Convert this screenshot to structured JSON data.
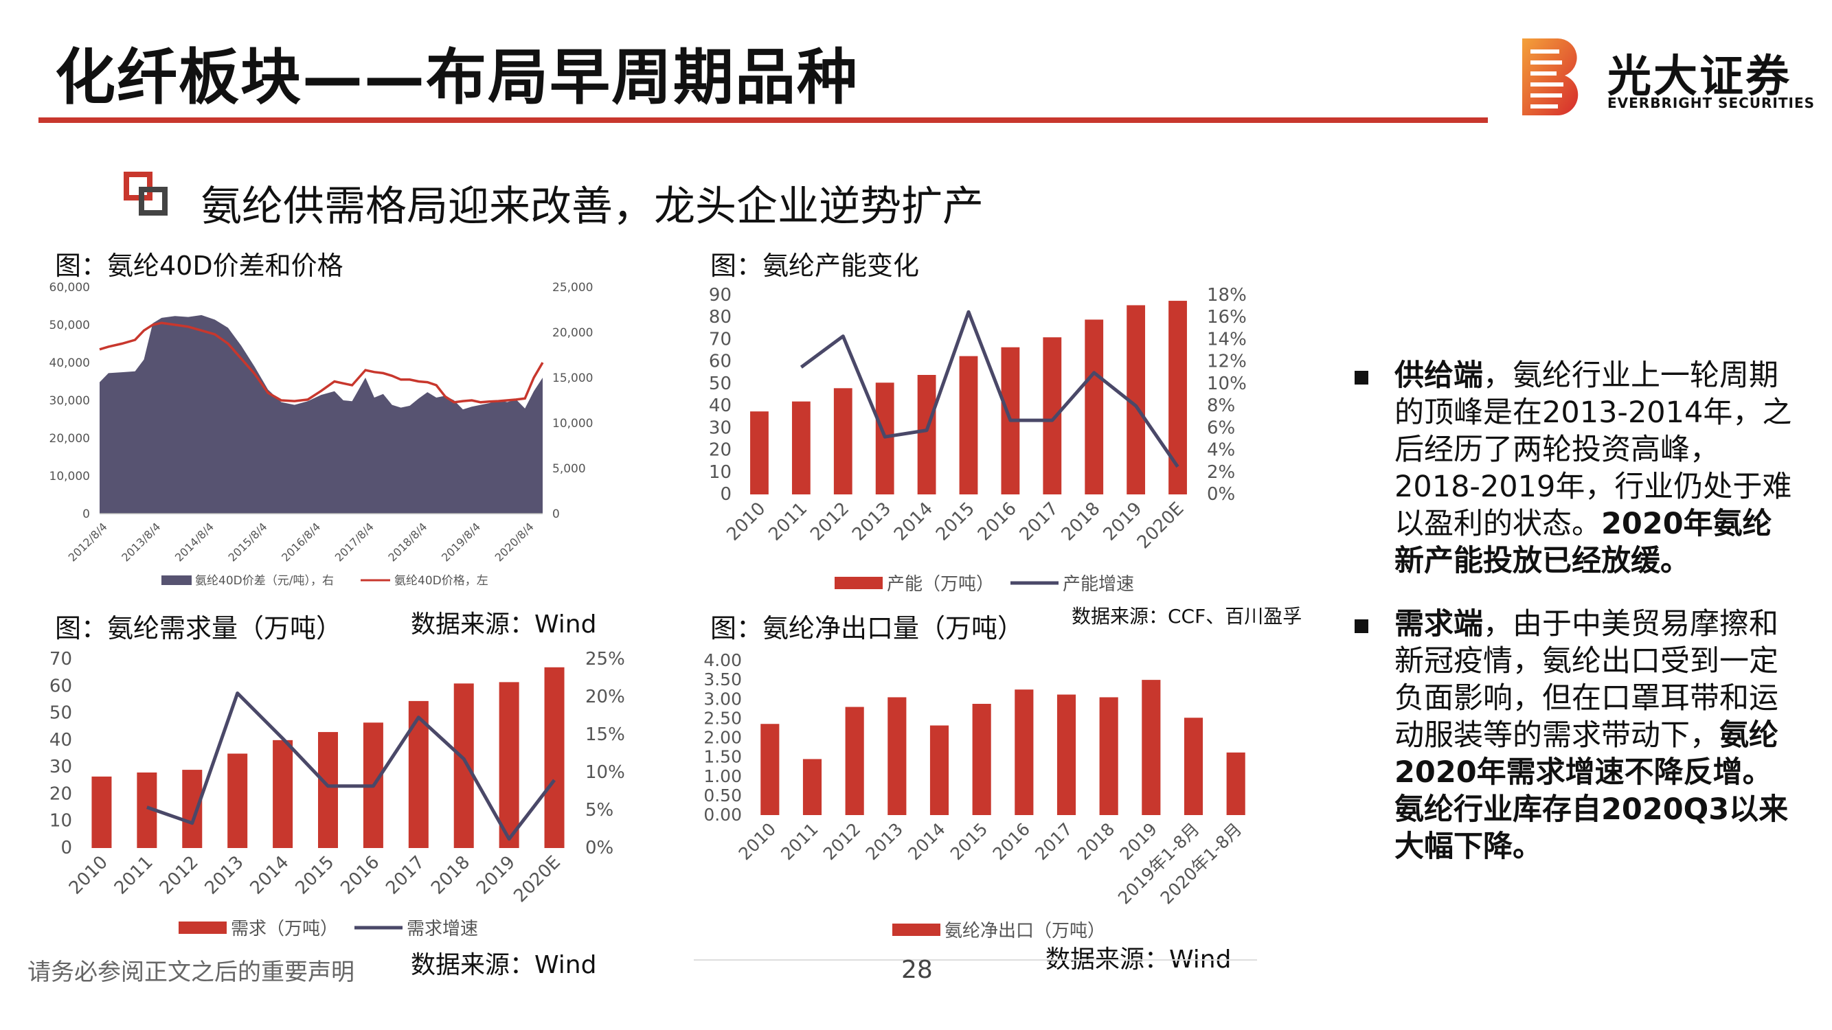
{
  "header": {
    "title": "化纤板块——布局早周期品种",
    "logo_cn": "光大证券",
    "logo_en": "EVERBRIGHT SECURITIES"
  },
  "subtitle": "氨纶供需格局迎来改善，龙头企业逆势扩产",
  "charts": {
    "price": {
      "caption": "图：氨纶40D价差和价格",
      "source": "数据来源：Wind"
    },
    "capacity": {
      "caption": "图：氨纶产能变化",
      "source": "数据来源：CCF、百川盈孚"
    },
    "demand": {
      "caption": "图：氨纶需求量（万吨）",
      "source": "数据来源：Wind"
    },
    "export": {
      "caption": "图：氨纶净出口量（万吨）",
      "source": "数据来源：Wind"
    }
  },
  "chart_data": [
    {
      "id": "price",
      "type": "area",
      "x_ticks": [
        "2012/8/4",
        "2013/8/4",
        "2014/8/4",
        "2015/8/4",
        "2016/8/4",
        "2017/8/4",
        "2018/8/4",
        "2019/8/4",
        "2020/8/4"
      ],
      "y_left_ticks": [
        "0",
        "10,000",
        "20,000",
        "30,000",
        "40,000",
        "50,000",
        "60,000"
      ],
      "y_right_ticks": [
        "0",
        "5,000",
        "10,000",
        "15,000",
        "20,000",
        "25,000"
      ],
      "ylim_left": [
        0,
        60000
      ],
      "ylim_right": [
        0,
        25000
      ],
      "series": [
        {
          "name": "氨纶40D价差（元/吨），右",
          "kind": "area",
          "axis": "right",
          "color": "#575371",
          "x": [
            0,
            0.02,
            0.05,
            0.08,
            0.1,
            0.12,
            0.14,
            0.17,
            0.2,
            0.23,
            0.26,
            0.29,
            0.32,
            0.35,
            0.38,
            0.41,
            0.44,
            0.47,
            0.5,
            0.53,
            0.55,
            0.57,
            0.6,
            0.62,
            0.64,
            0.66,
            0.68,
            0.7,
            0.72,
            0.74,
            0.76,
            0.78,
            0.8,
            0.82,
            0.84,
            0.86,
            0.88,
            0.9,
            0.92,
            0.94,
            0.96,
            0.98,
            1.0
          ],
          "values": [
            14500,
            15500,
            15600,
            15700,
            17000,
            21000,
            21600,
            21800,
            21700,
            21900,
            21400,
            20500,
            18500,
            16200,
            13700,
            12300,
            12000,
            12400,
            13100,
            13500,
            12500,
            12400,
            15000,
            12800,
            13200,
            12000,
            11700,
            11900,
            12700,
            13400,
            12800,
            13000,
            12500,
            11500,
            11800,
            12000,
            12200,
            12500,
            12300,
            12600,
            11600,
            13500,
            15000
          ]
        },
        {
          "name": "氨纶40D价格，左",
          "kind": "line",
          "axis": "left",
          "color": "#c8372d",
          "x": [
            0,
            0.02,
            0.05,
            0.08,
            0.1,
            0.12,
            0.14,
            0.17,
            0.2,
            0.23,
            0.26,
            0.29,
            0.32,
            0.35,
            0.38,
            0.41,
            0.44,
            0.47,
            0.5,
            0.53,
            0.55,
            0.57,
            0.6,
            0.62,
            0.64,
            0.66,
            0.68,
            0.7,
            0.72,
            0.74,
            0.76,
            0.78,
            0.8,
            0.82,
            0.84,
            0.86,
            0.88,
            0.9,
            0.92,
            0.94,
            0.96,
            0.98,
            1.0
          ],
          "values": [
            43500,
            44200,
            45000,
            46000,
            48500,
            50000,
            50500,
            50000,
            49500,
            48500,
            47500,
            45000,
            41000,
            37000,
            32000,
            30000,
            29800,
            30200,
            32500,
            35000,
            34500,
            34000,
            38000,
            37500,
            37200,
            36500,
            35500,
            35500,
            35000,
            34800,
            34000,
            31000,
            29500,
            29800,
            30000,
            29500,
            29700,
            29800,
            30000,
            30200,
            30500,
            36000,
            40000
          ]
        }
      ]
    },
    {
      "id": "capacity",
      "type": "bar",
      "categories": [
        "2010",
        "2011",
        "2012",
        "2013",
        "2014",
        "2015",
        "2016",
        "2017",
        "2018",
        "2019",
        "2020E"
      ],
      "y_left_ticks": [
        "0",
        "10",
        "20",
        "30",
        "40",
        "50",
        "60",
        "70",
        "80",
        "90"
      ],
      "y_right_ticks": [
        "0%",
        "2%",
        "4%",
        "6%",
        "8%",
        "10%",
        "12%",
        "14%",
        "16%",
        "18%"
      ],
      "ylim_left": [
        0,
        90
      ],
      "ylim_right": [
        0,
        0.18
      ],
      "series": [
        {
          "name": "产能（万吨）",
          "kind": "bar",
          "axis": "left",
          "color": "#c8372d",
          "values": [
            37.5,
            42,
            48,
            50.5,
            54,
            62.5,
            66.5,
            71,
            79,
            85.5,
            87.5
          ]
        },
        {
          "name": "产能增速",
          "kind": "line",
          "axis": "right",
          "color": "#4a4868",
          "values": [
            null,
            0.115,
            0.143,
            0.052,
            0.058,
            0.165,
            0.067,
            0.067,
            0.11,
            0.08,
            0.025
          ]
        }
      ]
    },
    {
      "id": "demand",
      "type": "bar",
      "categories": [
        "2010",
        "2011",
        "2012",
        "2013",
        "2014",
        "2015",
        "2016",
        "2017",
        "2018",
        "2019",
        "2020E"
      ],
      "y_left_ticks": [
        "0",
        "10",
        "20",
        "30",
        "40",
        "50",
        "60",
        "70"
      ],
      "y_right_ticks": [
        "0%",
        "5%",
        "10%",
        "15%",
        "20%",
        "25%"
      ],
      "ylim_left": [
        0,
        70
      ],
      "ylim_right": [
        0,
        0.25
      ],
      "series": [
        {
          "name": "需求（万吨）",
          "kind": "bar",
          "axis": "left",
          "color": "#c8372d",
          "values": [
            26.5,
            28,
            29,
            35,
            40,
            43,
            46.5,
            54.5,
            61,
            61.5,
            67
          ]
        },
        {
          "name": "需求增速",
          "kind": "line",
          "axis": "right",
          "color": "#4a4868",
          "values": [
            null,
            0.054,
            0.033,
            0.205,
            0.145,
            0.082,
            0.082,
            0.173,
            0.118,
            0.012,
            0.09
          ]
        }
      ]
    },
    {
      "id": "export",
      "type": "bar",
      "categories": [
        "2010",
        "2011",
        "2012",
        "2013",
        "2014",
        "2015",
        "2016",
        "2017",
        "2018",
        "2019",
        "2019年1-8月",
        "2020年1-8月"
      ],
      "y_left_ticks": [
        "0.00",
        "0.50",
        "1.00",
        "1.50",
        "2.00",
        "2.50",
        "3.00",
        "3.50",
        "4.00"
      ],
      "ylim_left": [
        0,
        4
      ],
      "series": [
        {
          "name": "氨纶净出口（万吨）",
          "kind": "bar",
          "axis": "left",
          "color": "#c8372d",
          "values": [
            2.36,
            1.45,
            2.8,
            3.05,
            2.32,
            2.88,
            3.25,
            3.12,
            3.05,
            3.5,
            2.52,
            1.62
          ]
        }
      ]
    }
  ],
  "bullets": [
    {
      "lead": "供给端",
      "text": "，氨纶行业上一轮周期的顶峰是在2013-2014年，之后经历了两轮投资高峰，2018-2019年，行业仍处于难以盈利的状态。",
      "tail": "2020年氨纶新产能投放已经放缓。"
    },
    {
      "lead": "需求端",
      "text": "，由于中美贸易摩擦和新冠疫情，氨纶出口受到一定负面影响，但在口罩耳带和运动服装等的需求带动下，",
      "tail": "氨纶2020年需求增速不降反增。氨纶行业库存自2020Q3以来大幅下降。"
    }
  ],
  "footer": {
    "note": "请务必参阅正文之后的重要声明",
    "page": "28"
  }
}
